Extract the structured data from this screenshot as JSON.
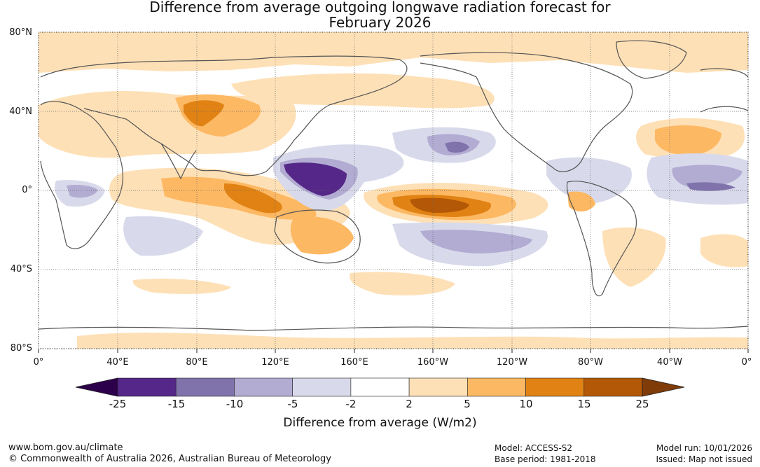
{
  "title_line1": "Difference from average outgoing longwave radiation forecast for",
  "title_line2": "February 2026",
  "lat_labels": [
    "80°N",
    "40°N",
    "0°",
    "40°S",
    "80°S"
  ],
  "lon_labels": [
    "0°",
    "40°E",
    "80°E",
    "120°E",
    "160°E",
    "160°W",
    "120°W",
    "80°W",
    "40°W",
    "0°"
  ],
  "colorbar": {
    "ticks": [
      "-25",
      "-15",
      "-10",
      "-5",
      "-2",
      "2",
      "5",
      "10",
      "15",
      "25"
    ],
    "colors": [
      "#2d004b",
      "#542788",
      "#8073ac",
      "#b2abd2",
      "#d8daeb",
      "#ffffff",
      "#fee0b6",
      "#fdb863",
      "#e08214",
      "#b35806",
      "#7f3b08"
    ],
    "label": "Difference from average (W/m2)"
  },
  "footer": {
    "url": "www.bom.gov.au/climate",
    "copyright": "© Commonwealth of Australia 2026, Australian Bureau of Meteorology",
    "model": "Model: ACCESS-S2",
    "base_period": "Base period: 1981-2018",
    "model_run": "Model run: 10/01/2026",
    "issued": "Issued: Map not issued"
  }
}
